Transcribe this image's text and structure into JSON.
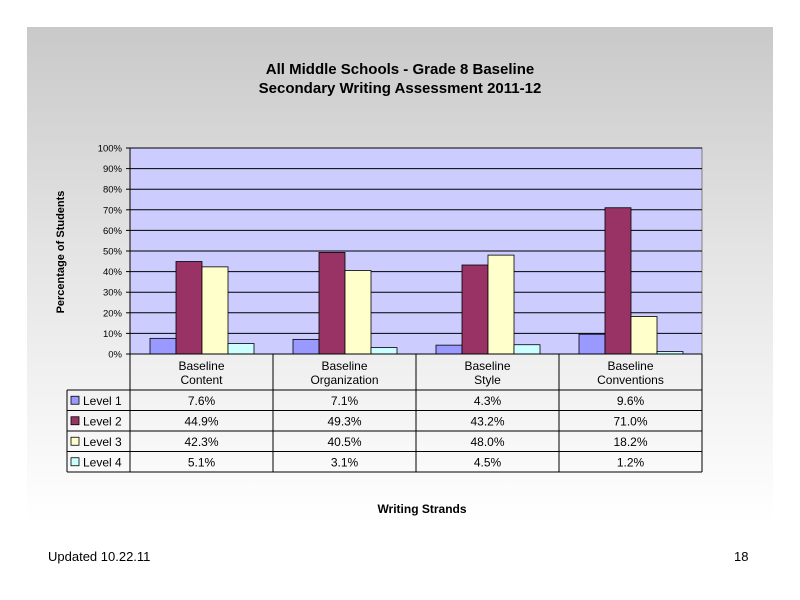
{
  "title_line1": "All Middle Schools - Grade 8 Baseline",
  "title_line2": "Secondary Writing Assessment 2011-12",
  "footer": {
    "updated": "Updated  10.22.11",
    "page_number": "18"
  },
  "chart_data": {
    "type": "bar",
    "title": "All Middle Schools - Grade 8 Baseline Secondary Writing Assessment 2011-12",
    "xlabel": "Writing Strands",
    "ylabel": "Percentage of Students",
    "ylim": [
      0,
      100
    ],
    "yticks": [
      "0%",
      "10%",
      "20%",
      "30%",
      "40%",
      "50%",
      "60%",
      "70%",
      "80%",
      "90%",
      "100%"
    ],
    "grid": true,
    "categories": [
      [
        "Baseline",
        "Content"
      ],
      [
        "Baseline",
        "Organization"
      ],
      [
        "Baseline",
        "Style"
      ],
      [
        "Baseline",
        "Conventions"
      ]
    ],
    "series": [
      {
        "name": "Level 1",
        "color": "#9999ff",
        "values": [
          7.6,
          7.1,
          4.3,
          9.6
        ],
        "labels": [
          "7.6%",
          "7.1%",
          "4.3%",
          "9.6%"
        ]
      },
      {
        "name": "Level 2",
        "color": "#993366",
        "values": [
          44.9,
          49.3,
          43.2,
          71.0
        ],
        "labels": [
          "44.9%",
          "49.3%",
          "43.2%",
          "71.0%"
        ]
      },
      {
        "name": "Level 3",
        "color": "#ffffcc",
        "values": [
          42.3,
          40.5,
          48.0,
          18.2
        ],
        "labels": [
          "42.3%",
          "40.5%",
          "48.0%",
          "18.2%"
        ]
      },
      {
        "name": "Level 4",
        "color": "#ccffff",
        "values": [
          5.1,
          3.1,
          4.5,
          1.2
        ],
        "labels": [
          "5.1%",
          "3.1%",
          "4.5%",
          "1.2%"
        ]
      }
    ],
    "plot_background": "#ccccff",
    "data_table": true
  }
}
